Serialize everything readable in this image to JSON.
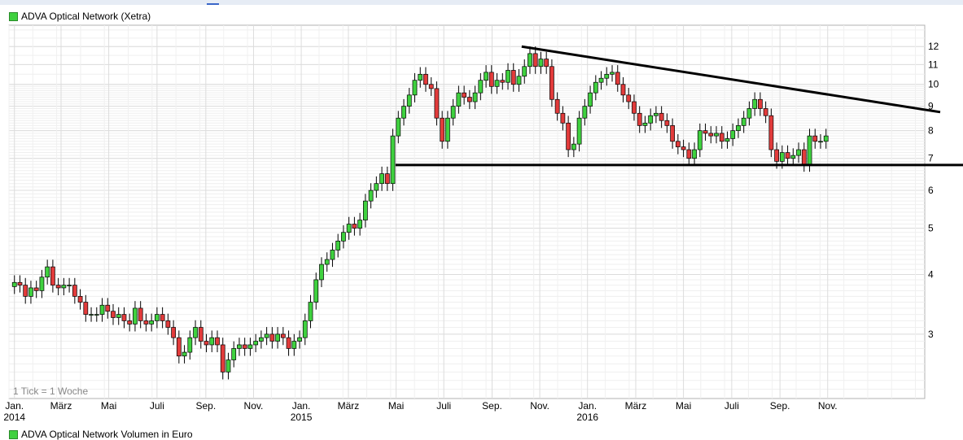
{
  "legend": {
    "title": "ADVA Optical Network (Xetra)",
    "swatch_color": "#3fd13f",
    "volume_title": "ADVA Optical Network Volumen in Euro"
  },
  "colors": {
    "up": "#3fd13f",
    "down": "#e23b3b",
    "grid": "#dcdcdc",
    "trendline": "#000000"
  },
  "chart_data": {
    "type": "candlestick",
    "title": "ADVA Optical Network (Xetra)",
    "note": "1 Tick = 1 Woche",
    "y_scale": "log",
    "ylim": [
      2.2,
      13.3
    ],
    "y_ticks": [
      3,
      4,
      5,
      6,
      7,
      8,
      9,
      10,
      11,
      12
    ],
    "x_unit": "weeks since first week of Jan 2014",
    "xlim": [
      -1,
      166
    ],
    "grid": true,
    "x_ticks": [
      {
        "week": 0,
        "label": "Jan.",
        "year": "2014"
      },
      {
        "week": 8.5,
        "label": "März",
        "year": ""
      },
      {
        "week": 17.2,
        "label": "Mai",
        "year": ""
      },
      {
        "week": 26,
        "label": "Juli",
        "year": ""
      },
      {
        "week": 34.9,
        "label": "Sep.",
        "year": ""
      },
      {
        "week": 43.6,
        "label": "Nov.",
        "year": ""
      },
      {
        "week": 52.3,
        "label": "Jan.",
        "year": "2015"
      },
      {
        "week": 60.9,
        "label": "März",
        "year": ""
      },
      {
        "week": 69.6,
        "label": "Mai",
        "year": ""
      },
      {
        "week": 78.3,
        "label": "Juli",
        "year": ""
      },
      {
        "week": 87.1,
        "label": "Sep.",
        "year": ""
      },
      {
        "week": 95.8,
        "label": "Nov.",
        "year": ""
      },
      {
        "week": 104.5,
        "label": "Jan.",
        "year": "2016"
      },
      {
        "week": 113.3,
        "label": "März",
        "year": ""
      },
      {
        "week": 122,
        "label": "Mai",
        "year": ""
      },
      {
        "week": 130.8,
        "label": "Juli",
        "year": ""
      },
      {
        "week": 139.6,
        "label": "Sep.",
        "year": ""
      },
      {
        "week": 148.3,
        "label": "Nov.",
        "year": ""
      }
    ],
    "closes": [
      3.85,
      3.8,
      3.6,
      3.75,
      3.7,
      3.95,
      4.15,
      3.8,
      3.75,
      3.8,
      3.8,
      3.6,
      3.5,
      3.3,
      3.3,
      3.3,
      3.45,
      3.35,
      3.25,
      3.3,
      3.2,
      3.15,
      3.4,
      3.2,
      3.15,
      3.2,
      3.3,
      3.2,
      3.1,
      2.95,
      2.7,
      2.75,
      2.95,
      3.1,
      2.9,
      2.85,
      2.95,
      2.85,
      2.5,
      2.65,
      2.8,
      2.85,
      2.8,
      2.85,
      2.9,
      2.95,
      3.0,
      2.9,
      3.0,
      2.95,
      2.8,
      2.9,
      2.95,
      3.2,
      3.5,
      3.9,
      4.2,
      4.3,
      4.5,
      4.7,
      4.9,
      5.1,
      5.0,
      5.2,
      5.7,
      6.0,
      6.2,
      6.5,
      6.2,
      7.8,
      8.5,
      9.0,
      9.5,
      10.2,
      10.5,
      10.0,
      9.8,
      8.5,
      7.6,
      8.5,
      9.0,
      9.6,
      9.4,
      9.2,
      9.6,
      10.2,
      10.6,
      9.9,
      10.2,
      10.1,
      10.7,
      10.0,
      10.4,
      10.9,
      11.6,
      10.9,
      11.3,
      10.9,
      9.3,
      8.7,
      8.3,
      7.3,
      7.5,
      8.5,
      9.0,
      9.6,
      10.1,
      10.3,
      10.5,
      10.6,
      10.0,
      9.5,
      9.2,
      8.7,
      8.2,
      8.3,
      8.6,
      8.7,
      8.4,
      8.2,
      7.6,
      7.4,
      7.3,
      7.0,
      7.3,
      8.0,
      7.9,
      7.8,
      7.9,
      7.6,
      7.7,
      8.0,
      8.2,
      8.5,
      8.9,
      9.3,
      8.9,
      8.6,
      7.3,
      6.9,
      7.2,
      7.0,
      7.1,
      7.3,
      6.8,
      7.8,
      7.6,
      7.6,
      7.8
    ]
  }
}
